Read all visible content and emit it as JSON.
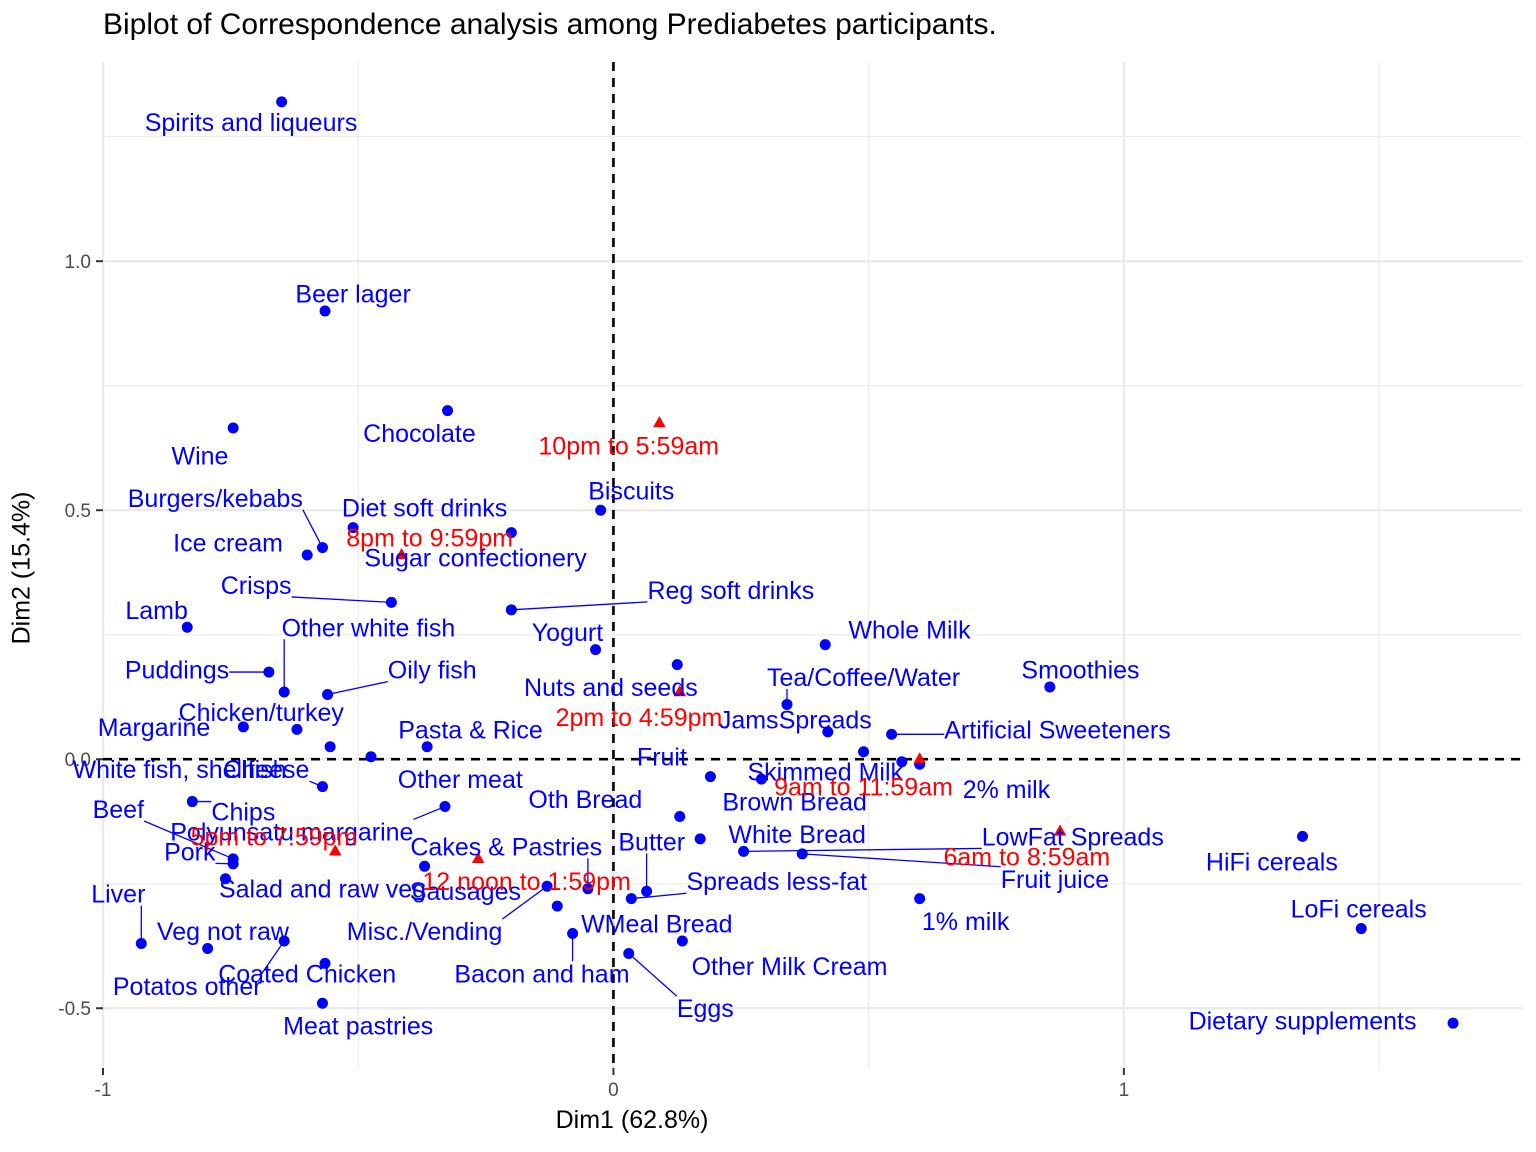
{
  "chart_data": {
    "type": "scatter",
    "title": "Biplot of Correspondence analysis among Prediabetes participants.",
    "xlabel": "Dim1 (62.8%)",
    "ylabel": "Dim2 (15.4%)",
    "xlim": [
      -1.0,
      1.78
    ],
    "ylim": [
      -0.62,
      1.4
    ],
    "x_ticks": [
      {
        "value": -1,
        "label": "-1"
      },
      {
        "value": 0,
        "label": "0"
      },
      {
        "value": 1,
        "label": "1"
      }
    ],
    "y_ticks": [
      {
        "value": -0.5,
        "label": "-0.5"
      },
      {
        "value": 0.0,
        "label": "0.0"
      },
      {
        "value": 0.5,
        "label": "0.5"
      },
      {
        "value": 1.0,
        "label": "1.0"
      }
    ],
    "grid": true,
    "reference_lines": {
      "x": 0,
      "y": 0,
      "style": "dashed"
    },
    "colors": {
      "row_points": "#0000ff",
      "column_points": "#ff0000",
      "grid": "#ebebeb",
      "reference": "#000000"
    },
    "series": [
      {
        "role": "row_points",
        "marker": "circle",
        "color": "#0000ff",
        "points": [
          {
            "label": "Spirits and liqueurs",
            "x": -0.65,
            "y": 1.32,
            "lx": -0.71,
            "ly": 1.28
          },
          {
            "label": "Beer lager",
            "x": -0.565,
            "y": 0.9,
            "lx": -0.51,
            "ly": 0.935
          },
          {
            "label": "Chocolate",
            "x": -0.325,
            "y": 0.7,
            "lx": -0.38,
            "ly": 0.655
          },
          {
            "label": "Wine",
            "x": -0.745,
            "y": 0.665,
            "lx": -0.81,
            "ly": 0.61
          },
          {
            "label": "Biscuits",
            "x": -0.025,
            "y": 0.5,
            "lx": 0.035,
            "ly": 0.54
          },
          {
            "label": "Burgers/kebabs",
            "x": -0.57,
            "y": 0.425,
            "lx": -0.78,
            "ly": 0.525,
            "leader": true
          },
          {
            "label": "Diet soft drinks",
            "x": -0.51,
            "y": 0.465,
            "lx": -0.37,
            "ly": 0.505
          },
          {
            "label": "Ice cream",
            "x": -0.6,
            "y": 0.41,
            "lx": -0.755,
            "ly": 0.435
          },
          {
            "label": "Sugar confectionery",
            "x": -0.2,
            "y": 0.455,
            "lx": -0.27,
            "ly": 0.405
          },
          {
            "label": "Crisps",
            "x": -0.435,
            "y": 0.315,
            "lx": -0.7,
            "ly": 0.35,
            "leader": true
          },
          {
            "label": "Reg soft drinks",
            "x": -0.2,
            "y": 0.3,
            "lx": 0.23,
            "ly": 0.34,
            "leader": true
          },
          {
            "label": "Lamb",
            "x": -0.835,
            "y": 0.265,
            "lx": -0.895,
            "ly": 0.3
          },
          {
            "label": "Other white fish",
            "x": -0.645,
            "y": 0.135,
            "lx": -0.48,
            "ly": 0.265,
            "leader": true
          },
          {
            "label": "Yogurt",
            "x": -0.035,
            "y": 0.22,
            "lx": -0.09,
            "ly": 0.255
          },
          {
            "label": "Whole Milk",
            "x": 0.415,
            "y": 0.23,
            "lx": 0.58,
            "ly": 0.26
          },
          {
            "label": "Smoothies",
            "x": 0.855,
            "y": 0.145,
            "lx": 0.915,
            "ly": 0.18
          },
          {
            "label": "Puddings",
            "x": -0.675,
            "y": 0.175,
            "lx": -0.855,
            "ly": 0.18,
            "leader": true
          },
          {
            "label": "Nuts and seeds",
            "x": 0.125,
            "y": 0.19,
            "lx": -0.005,
            "ly": 0.145
          },
          {
            "label": "Oily fish",
            "x": -0.56,
            "y": 0.13,
            "lx": -0.355,
            "ly": 0.18,
            "leader": true
          },
          {
            "label": "Tea/Coffee/Water",
            "x": 0.34,
            "y": 0.11,
            "lx": 0.49,
            "ly": 0.165,
            "leader": true
          },
          {
            "label": "Chicken/turkey",
            "x": -0.62,
            "y": 0.06,
            "lx": -0.69,
            "ly": 0.095
          },
          {
            "label": "Margarine",
            "x": -0.725,
            "y": 0.065,
            "lx": -0.9,
            "ly": 0.065
          },
          {
            "label": "Jams",
            "x": 0.42,
            "y": 0.055,
            "lx": 0.265,
            "ly": 0.08
          },
          {
            "label": "Spreads",
            "x": 0.49,
            "y": 0.015,
            "lx": 0.415,
            "ly": 0.08
          },
          {
            "label": "Artificial Sweeteners",
            "x": 0.545,
            "y": 0.05,
            "lx": 0.87,
            "ly": 0.06,
            "leader": true
          },
          {
            "label": "Pasta & Rice",
            "x": -0.365,
            "y": 0.025,
            "lx": -0.28,
            "ly": 0.06
          },
          {
            "label": "Fruit",
            "x": 0.19,
            "y": -0.035,
            "lx": 0.095,
            "ly": 0.005
          },
          {
            "label": "Skimmed Milk",
            "x": 0.565,
            "y": -0.005,
            "lx": 0.415,
            "ly": -0.025
          },
          {
            "label": "2% milk",
            "x": 0.6,
            "y": -0.01,
            "lx": 0.77,
            "ly": -0.06
          },
          {
            "label": "White fish, shellfish",
            "x": -0.555,
            "y": 0.025,
            "lx": -0.85,
            "ly": -0.02
          },
          {
            "label": "Other meat",
            "x": -0.475,
            "y": 0.005,
            "lx": -0.3,
            "ly": -0.04
          },
          {
            "label": "Cheese",
            "x": -0.57,
            "y": -0.055,
            "lx": -0.68,
            "ly": -0.02,
            "leader": true
          },
          {
            "label": "Brown Bread",
            "x": 0.29,
            "y": -0.04,
            "lx": 0.355,
            "ly": -0.085
          },
          {
            "label": "Oth Bread",
            "x": 0.13,
            "y": -0.115,
            "lx": -0.055,
            "ly": -0.08
          },
          {
            "label": "Chips",
            "x": -0.825,
            "y": -0.085,
            "lx": -0.725,
            "ly": -0.105,
            "leader": true
          },
          {
            "label": "Beef",
            "x": -0.745,
            "y": -0.2,
            "lx": -0.97,
            "ly": -0.1,
            "leader": true
          },
          {
            "label": "Polyunsatu margarine",
            "x": -0.33,
            "y": -0.095,
            "lx": -0.63,
            "ly": -0.145,
            "leader": true
          },
          {
            "label": "White Bread",
            "x": 0.17,
            "y": -0.16,
            "lx": 0.36,
            "ly": -0.15
          },
          {
            "label": "LowFat Spreads",
            "x": 0.255,
            "y": -0.185,
            "lx": 0.9,
            "ly": -0.155,
            "leader": true
          },
          {
            "label": "Butter",
            "x": 0.065,
            "y": -0.265,
            "lx": 0.075,
            "ly": -0.165,
            "leader": true
          },
          {
            "label": "Cakes & Pastries",
            "x": -0.05,
            "y": -0.26,
            "lx": -0.21,
            "ly": -0.175,
            "leader": true
          },
          {
            "label": "Pork",
            "x": -0.745,
            "y": -0.21,
            "lx": -0.83,
            "ly": -0.185,
            "leader": true
          },
          {
            "label": "Fruit juice",
            "x": 0.37,
            "y": -0.19,
            "lx": 0.865,
            "ly": -0.24,
            "leader": true
          },
          {
            "label": "HiFi cereals",
            "x": 1.35,
            "y": -0.155,
            "lx": 1.29,
            "ly": -0.205
          },
          {
            "label": "Salad and raw veg",
            "x": -0.76,
            "y": -0.24,
            "lx": -0.57,
            "ly": -0.26,
            "leader": true
          },
          {
            "label": "Sausages",
            "x": -0.37,
            "y": -0.215,
            "lx": -0.29,
            "ly": -0.265
          },
          {
            "label": "Spreads less-fat",
            "x": 0.035,
            "y": -0.28,
            "lx": 0.32,
            "ly": -0.245,
            "leader": true
          },
          {
            "label": "Misc./Vending",
            "x": -0.13,
            "y": -0.255,
            "lx": -0.37,
            "ly": -0.345,
            "leader": true
          },
          {
            "label": "1% milk",
            "x": 0.6,
            "y": -0.28,
            "lx": 0.69,
            "ly": -0.325
          },
          {
            "label": "LoFi cereals",
            "x": 1.465,
            "y": -0.34,
            "lx": 1.46,
            "ly": -0.3
          },
          {
            "label": "WMeal Bread",
            "x": -0.11,
            "y": -0.295,
            "lx": 0.085,
            "ly": -0.33
          },
          {
            "label": "Liver",
            "x": -0.925,
            "y": -0.37,
            "lx": -0.97,
            "ly": -0.27,
            "leader": true
          },
          {
            "label": "Veg not raw",
            "x": -0.795,
            "y": -0.38,
            "lx": -0.765,
            "ly": -0.345,
            "leader": true
          },
          {
            "label": "Other Milk Cream",
            "x": 0.135,
            "y": -0.365,
            "lx": 0.345,
            "ly": -0.415
          },
          {
            "label": "Potatos other",
            "x": -0.645,
            "y": -0.365,
            "lx": -0.835,
            "ly": -0.455,
            "leader": true
          },
          {
            "label": "Coated Chicken",
            "x": -0.565,
            "y": -0.41,
            "lx": -0.6,
            "ly": -0.43,
            "leader": true
          },
          {
            "label": "Bacon and ham",
            "x": -0.08,
            "y": -0.35,
            "lx": -0.14,
            "ly": -0.43,
            "leader": true
          },
          {
            "label": "Eggs",
            "x": 0.03,
            "y": -0.39,
            "lx": 0.18,
            "ly": -0.5,
            "leader": true
          },
          {
            "label": "Meat pastries",
            "x": -0.57,
            "y": -0.49,
            "lx": -0.5,
            "ly": -0.535
          },
          {
            "label": "Dietary supplements",
            "x": 1.645,
            "y": -0.53,
            "lx": 1.35,
            "ly": -0.525
          }
        ]
      },
      {
        "role": "column_points",
        "marker": "triangle",
        "color": "#ff0000",
        "points": [
          {
            "label": "10pm to 5:59am",
            "x": 0.09,
            "y": 0.675,
            "lx": 0.03,
            "ly": 0.63
          },
          {
            "label": "8pm to 9:59pm",
            "x": -0.415,
            "y": 0.41,
            "lx": -0.36,
            "ly": 0.445
          },
          {
            "label": "2pm to 4:59pm",
            "x": 0.13,
            "y": 0.135,
            "lx": 0.05,
            "ly": 0.085
          },
          {
            "label": "9am to 11:59am",
            "x": 0.6,
            "y": 0.0,
            "lx": 0.49,
            "ly": -0.055
          },
          {
            "label": "6am to 8:59am",
            "x": 0.875,
            "y": -0.145,
            "lx": 0.81,
            "ly": -0.195
          },
          {
            "label": "5pm to 7:59pm",
            "x": -0.545,
            "y": -0.185,
            "lx": -0.665,
            "ly": -0.155
          },
          {
            "label": "12 noon to 1:59pm",
            "x": -0.265,
            "y": -0.2,
            "lx": -0.17,
            "ly": -0.245
          }
        ]
      }
    ]
  }
}
